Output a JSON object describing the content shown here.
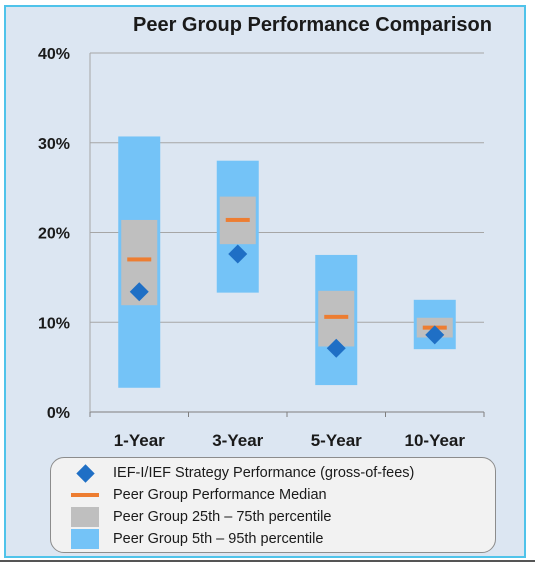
{
  "chart_data": {
    "type": "box",
    "title": "Peer Group Performance Comparison",
    "categories": [
      "1-Year",
      "3-Year",
      "5-Year",
      "10-Year"
    ],
    "y_ticks": [
      "0%",
      "10%",
      "20%",
      "30%",
      "40%"
    ],
    "ylim": [
      0,
      40
    ],
    "y_unit": "%",
    "grid": true,
    "series": [
      {
        "name": "Peer Group 5th – 95th percentile",
        "low": [
          2.7,
          13.3,
          3.0,
          7.0
        ],
        "high": [
          30.7,
          28.0,
          17.5,
          12.5
        ],
        "color": "#74c3f7"
      },
      {
        "name": "Peer Group 25th – 75th percentile",
        "low": [
          11.9,
          18.7,
          7.3,
          8.3
        ],
        "high": [
          21.4,
          24.0,
          13.5,
          10.5
        ],
        "color": "#bfbfbf"
      },
      {
        "name": "Peer Group Performance Median",
        "values": [
          17.0,
          21.4,
          10.6,
          9.4
        ],
        "color": "#ed7d31"
      },
      {
        "name": "IEF-I/IEF Strategy Performance (gross-of-fees)",
        "values": [
          13.4,
          17.6,
          7.1,
          8.6
        ],
        "color": "#1f6fc5"
      }
    ],
    "legend": {
      "position": "bottom",
      "items": [
        {
          "label": "IEF-I/IEF Strategy Performance (gross-of-fees)",
          "symbol": "diamond"
        },
        {
          "label": "Peer Group Performance Median",
          "symbol": "dash"
        },
        {
          "label": "Peer Group 25th – 75th percentile",
          "symbol": "box-gray"
        },
        {
          "label": "Peer Group 5th – 95th percentile",
          "symbol": "box-blue"
        }
      ]
    }
  }
}
